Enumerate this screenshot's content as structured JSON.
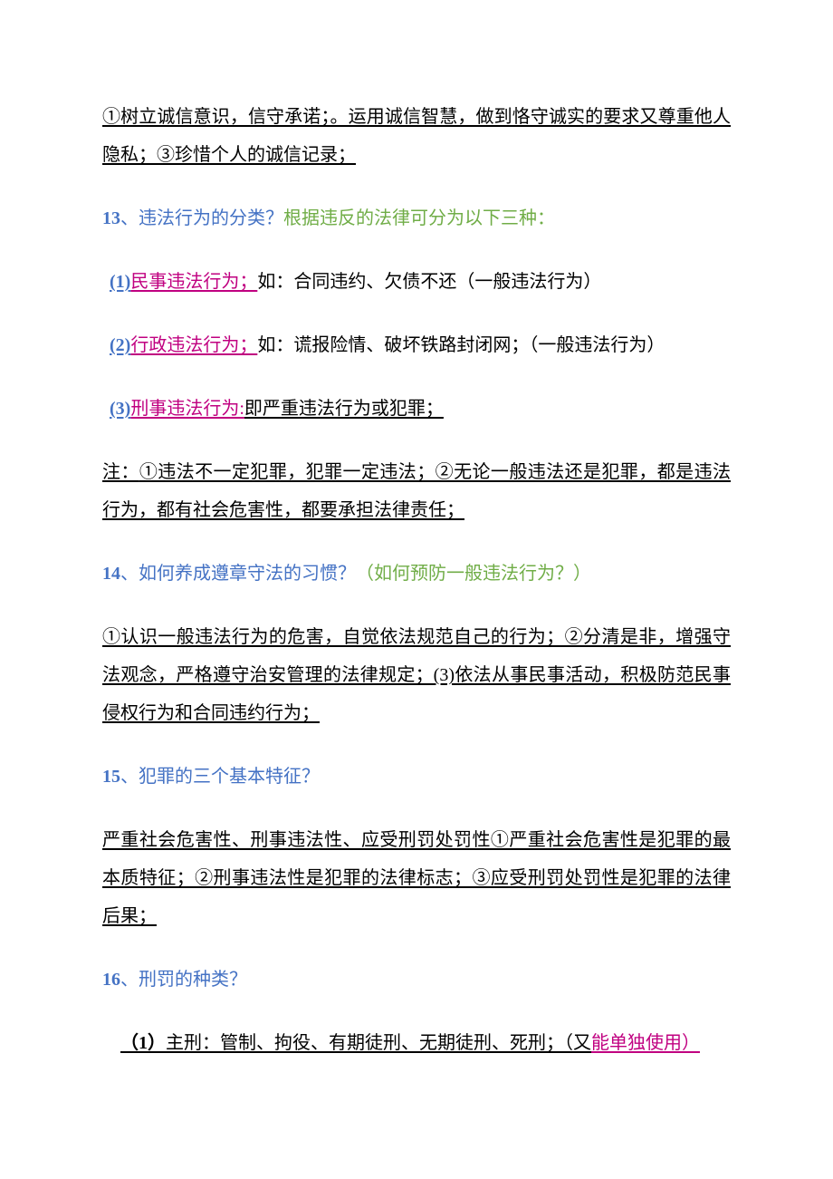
{
  "colors": {
    "blue": "#4472c4",
    "pink": "#c00080",
    "green": "#70ad47",
    "black": "#000000",
    "background": "#ffffff"
  },
  "typography": {
    "font_family": "SimSun / 宋体",
    "base_fontsize_pt": 15,
    "line_height": 2.1
  },
  "p1": {
    "text": "①树立诚信意识，信守承诺；。运用诚信智慧，做到恪守诚实的要求又尊重他人隐私；③珍惜个人的诚信记录；"
  },
  "q13": {
    "num": "13",
    "sep": "、",
    "title": "违法行为的分类？",
    "note": "根据违反的法律可分为以下三种："
  },
  "q13_1": {
    "num": "(1)",
    "label": "民事违法行为；",
    "text": "如：合同违约、欠债不还（一般违法行为）"
  },
  "q13_2": {
    "num": "(2)",
    "label": "行政违法行为；",
    "text": "如：谎报险情、破坏铁路封闭网；（一般违法行为）"
  },
  "q13_3": {
    "num": "(3)",
    "label": "刑事违法行为:",
    "text": "即严重违法行为或犯罪；"
  },
  "q13_note": {
    "lead": "注：",
    "text": "①违法不一定犯罪，犯罪一定违法；②无论一般违法还是犯罪，都是违法行为，都有社会危害性，都要承担法律责任；"
  },
  "q14": {
    "num": "14",
    "sep": "、",
    "title": "如何养成遵章守法的习惯？",
    "note": "（如何预防一般违法行为？）"
  },
  "q14_ans": {
    "text": "①认识一般违法行为的危害，自觉依法规范自己的行为；②分清是非，增强守法观念，严格遵守治安管理的法律规定；(3)依法从事民事活动，积极防范民事侵权行为和合同违约行为；"
  },
  "q15": {
    "num": "15",
    "sep": "、",
    "title": "犯罪的三个基本特征？"
  },
  "q15_ans": {
    "text": "严重社会危害性、刑事违法性、应受刑罚处罚性①严重社会危害性是犯罪的最本质特征；②刑事违法性是犯罪的法律标志；③应受刑罚处罚性是犯罪的法律后果；"
  },
  "q16": {
    "num": "16",
    "sep": "、",
    "title": "刑罚的种类？"
  },
  "q16_1": {
    "num": "（1）",
    "text": "主刑：管制、拘役、有期徒刑、无期徒刑、死刑；（又",
    "tail": "能单独使用）"
  }
}
